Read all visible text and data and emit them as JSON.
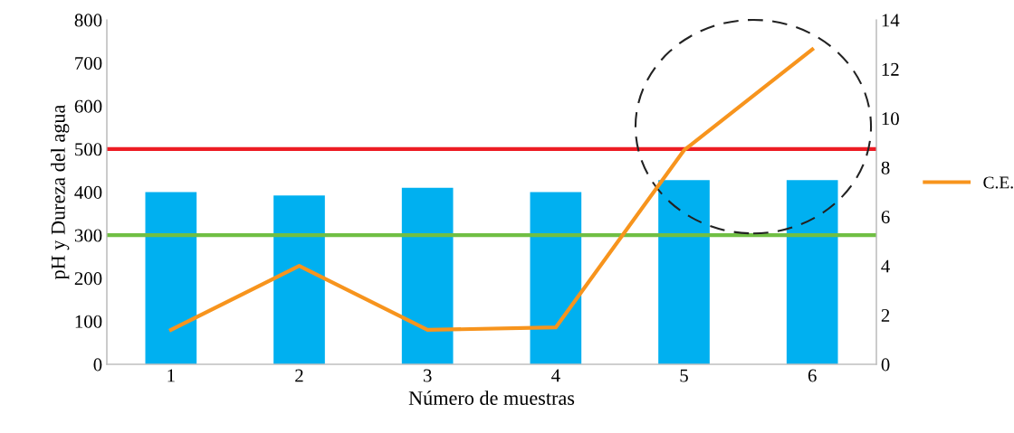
{
  "chart_data": {
    "type": "bar",
    "xlabel": "Número de muestras",
    "ylabel": "pH y Dureza del agua",
    "categories": [
      "1",
      "2",
      "3",
      "4",
      "5",
      "6"
    ],
    "series": [
      {
        "color": "#00b0f0",
        "values": [
          400,
          392,
          410,
          400,
          428,
          428
        ]
      },
      {
        "type": "line",
        "name": "C.E.",
        "color": "#f7941d",
        "axis": "y2",
        "values": [
          1.4,
          4.0,
          1.4,
          1.5,
          8.7,
          12.8
        ]
      }
    ],
    "ylim": [
      0,
      800
    ],
    "yticks": [
      0,
      100,
      200,
      300,
      400,
      500,
      600,
      700,
      800
    ],
    "y2lim": [
      0,
      14
    ],
    "y2ticks": [
      0,
      2,
      4,
      6,
      8,
      10,
      12,
      14
    ],
    "ref_lines": [
      {
        "axis": "y",
        "value": 500,
        "color": "#ed1c24"
      },
      {
        "axis": "y",
        "value": 300,
        "color": "#70bf44"
      }
    ],
    "legend": "right",
    "grid": false,
    "marker": "none",
    "line_style": "solid"
  }
}
